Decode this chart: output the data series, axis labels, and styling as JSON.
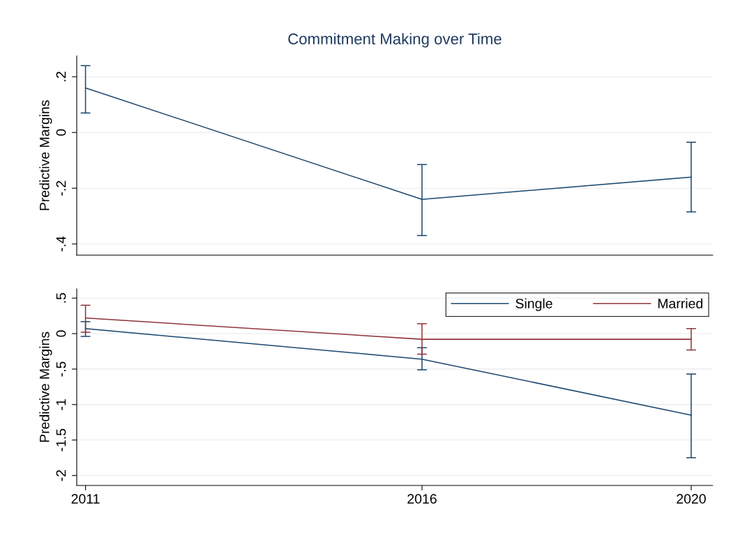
{
  "chart_data": [
    {
      "type": "line",
      "title": "Commitment Making over Time",
      "ylabel": "Predictive Margins",
      "x": [
        2011,
        2016,
        2020
      ],
      "xlim": [
        2010.87,
        2020.32
      ],
      "ylim": [
        -0.44,
        0.275
      ],
      "yticks": [
        {
          "value": -0.4,
          "label": "-.4"
        },
        {
          "value": -0.2,
          "label": "-.2"
        },
        0,
        {
          "value": 0.2,
          "label": ".2"
        }
      ],
      "grid": "y",
      "tick_labels": "y",
      "legend": false,
      "series": [
        {
          "color": "#1a476f",
          "values": [
            0.16,
            -0.24,
            -0.16
          ],
          "errors": [
            [
              0.07,
              0.24
            ],
            [
              -0.37,
              -0.115
            ],
            [
              -0.285,
              -0.035
            ]
          ]
        }
      ]
    },
    {
      "type": "line",
      "ylabel": "Predictive Margins",
      "x": [
        2011,
        2016,
        2020
      ],
      "xlim": [
        2010.87,
        2020.32
      ],
      "xticks": [
        2011,
        2016,
        2020
      ],
      "ylim": [
        -2.14,
        0.63
      ],
      "yticks": [
        -2,
        {
          "value": -1.5,
          "label": "-1.5"
        },
        -1,
        {
          "value": -0.5,
          "label": "-.5"
        },
        0,
        {
          "value": 0.5,
          "label": ".5"
        }
      ],
      "grid": "y",
      "legend": "top right",
      "series": [
        {
          "name": "Single",
          "color": "#1a476f",
          "values": [
            0.07,
            -0.36,
            -1.15
          ],
          "errors": [
            [
              -0.04,
              0.17
            ],
            [
              -0.51,
              -0.2
            ],
            [
              -1.75,
              -0.57
            ]
          ]
        },
        {
          "name": "Married",
          "color": "#90353b",
          "values": [
            0.22,
            -0.08,
            -0.08
          ],
          "errors": [
            [
              0.02,
              0.4
            ],
            [
              -0.29,
              0.14
            ],
            [
              -0.23,
              0.07
            ]
          ]
        }
      ]
    }
  ]
}
